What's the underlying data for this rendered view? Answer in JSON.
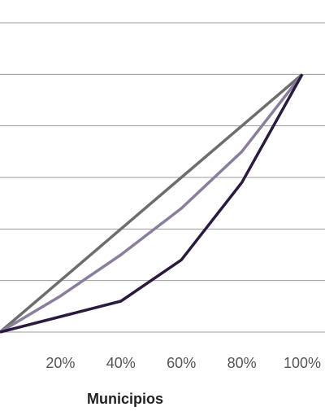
{
  "chart_data": {
    "type": "line",
    "xlabel": "Municipios",
    "ylabel": "",
    "x": [
      0,
      20,
      40,
      60,
      80,
      100
    ],
    "x_tick_labels": [
      "20%",
      "40%",
      "60%",
      "80%",
      "100%"
    ],
    "x_tick_values": [
      20,
      40,
      60,
      80,
      100
    ],
    "xlim": [
      0,
      100
    ],
    "ylim": [
      0,
      120
    ],
    "y_gridlines": [
      20,
      40,
      60,
      80,
      100,
      120
    ],
    "grid": "horizontal",
    "series": [
      {
        "values": [
          0,
          20,
          40,
          60,
          80,
          100
        ],
        "color": "#6d6d6d"
      },
      {
        "values": [
          0,
          14,
          30,
          48,
          70,
          100
        ],
        "color": "#8a7e9d"
      },
      {
        "values": [
          0,
          6,
          12,
          28,
          58,
          100
        ],
        "color": "#2a1a3f"
      }
    ]
  }
}
